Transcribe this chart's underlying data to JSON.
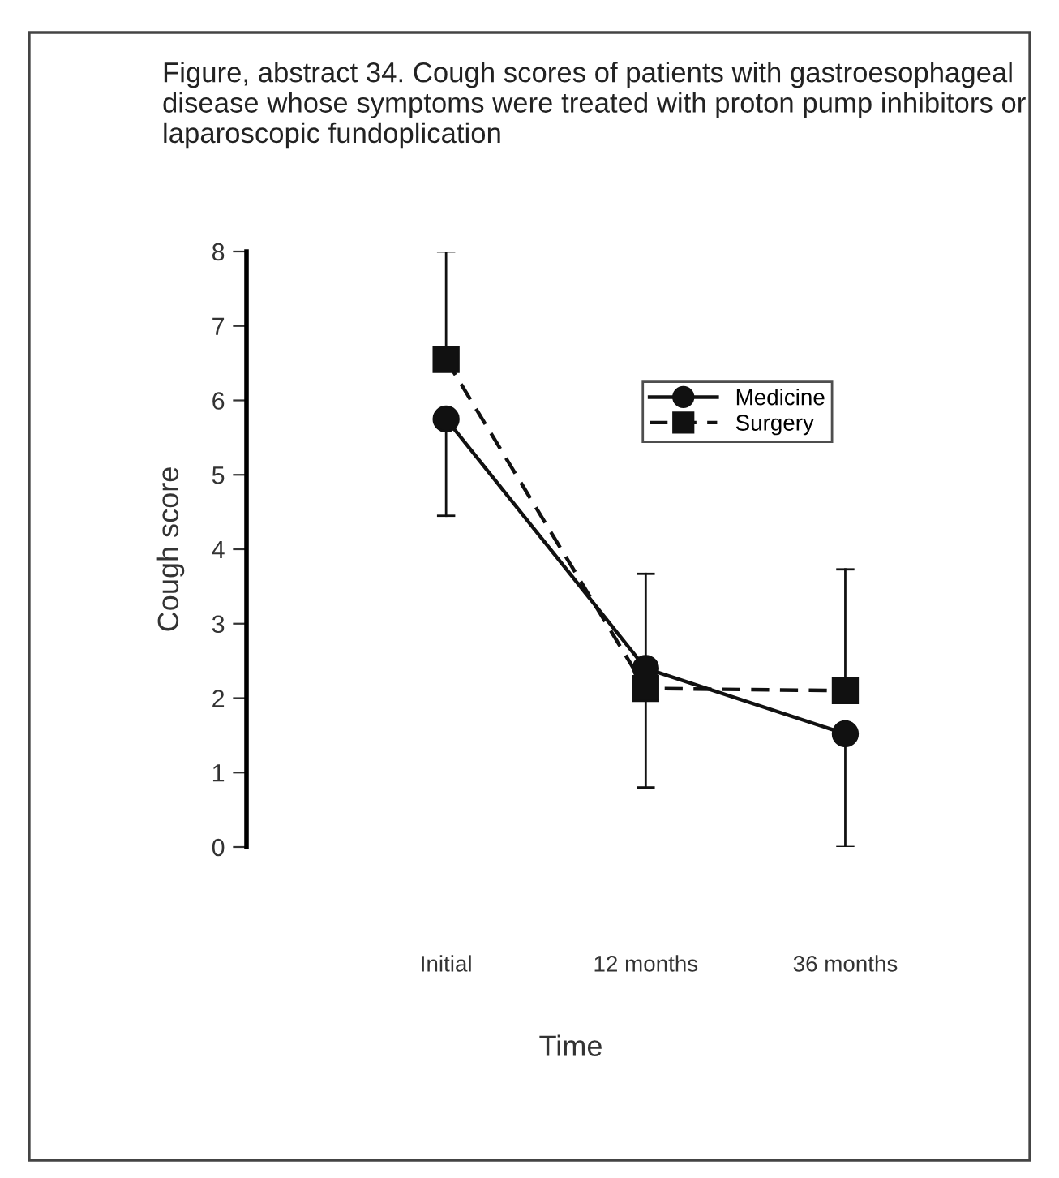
{
  "chart_data": {
    "type": "line",
    "title": "Figure, abstract 34. Cough scores of patients with gastroesophageal disease whose symptoms were treated with proton pump inhibitors or laparoscopic fundoplication",
    "xlabel": "Time",
    "ylabel": "Cough score",
    "categories": [
      "Initial",
      "12 months",
      "36 months"
    ],
    "series": [
      {
        "name": "Medicine",
        "color": "#111111",
        "values": [
          5.75,
          2.4,
          1.52
        ],
        "marker": "circle",
        "line_style": "solid",
        "errors": [
          [
            4.45,
            5.75
          ],
          [
            2.4,
            3.67
          ],
          [
            0,
            1.52
          ]
        ]
      },
      {
        "name": "Surgery",
        "color": "#111111",
        "values": [
          6.55,
          2.13,
          2.1
        ],
        "marker": "square",
        "line_style": "dashed",
        "errors": [
          [
            6.55,
            8
          ],
          [
            0.8,
            2.13
          ],
          [
            2.1,
            3.73
          ]
        ]
      }
    ],
    "ylim": [
      0,
      8
    ],
    "yticks": [
      0,
      1,
      2,
      3,
      4,
      5,
      6,
      7,
      8
    ],
    "grid": false,
    "legend": "top right"
  }
}
